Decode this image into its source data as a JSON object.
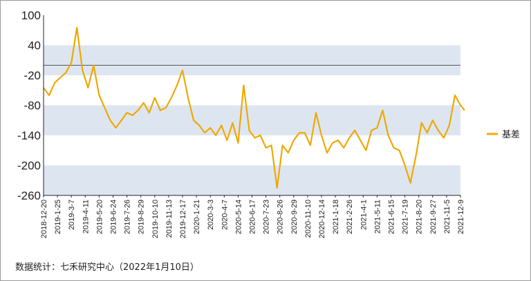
{
  "chart_data": {
    "type": "line",
    "title": "",
    "xlabel": "",
    "ylabel": "",
    "ylim": [
      -260,
      100
    ],
    "yticks": [
      100,
      40,
      -20,
      -80,
      -140,
      -200,
      -260
    ],
    "reference_line": 0,
    "shaded_bands": [
      [
        -20,
        40
      ],
      [
        -140,
        -80
      ],
      [
        -260,
        -200
      ]
    ],
    "x_tick_labels": [
      "2018-12-20",
      "2019-1-25",
      "2019-3-7",
      "2019-4-11",
      "2019-5-20",
      "2019-6-24",
      "2019-7-26",
      "2019-8-29",
      "2019-10-10",
      "2019-11-13",
      "2019-12-17",
      "2020-1-21",
      "2020-3-3",
      "2020-4-7",
      "2020-5-14",
      "2020-6-17",
      "2020-7-23",
      "2020-8-26",
      "2020-9-29",
      "2020-11-10",
      "2020-12-14",
      "2021-1-18",
      "2021-2-26",
      "2021-4-1",
      "2021-5-11",
      "2021-6-15",
      "2021-7-19",
      "2021-8-20",
      "2021-9-27",
      "2021-11-5",
      "2021-12-9"
    ],
    "series": [
      {
        "name": "基差",
        "color": "#F0A800",
        "x": [
          0,
          0.4,
          0.8,
          1.2,
          1.6,
          2.0,
          2.4,
          2.8,
          3.2,
          3.6,
          4.0,
          4.4,
          4.8,
          5.2,
          5.6,
          6.0,
          6.4,
          6.8,
          7.2,
          7.6,
          8.0,
          8.4,
          8.8,
          9.2,
          9.6,
          10.0,
          10.4,
          10.8,
          11.2,
          11.6,
          12.0,
          12.4,
          12.8,
          13.2,
          13.6,
          14.0,
          14.4,
          14.8,
          15.2,
          15.6,
          16.0,
          16.4,
          16.8,
          17.2,
          17.6,
          18.0,
          18.4,
          18.8,
          19.2,
          19.6,
          20.0,
          20.4,
          20.8,
          21.2,
          21.6,
          22.0,
          22.4,
          22.8,
          23.2,
          23.6,
          24.0,
          24.4,
          24.8,
          25.2,
          25.6,
          26.0,
          26.4,
          26.8,
          27.2,
          27.6,
          28.0,
          28.4,
          28.8,
          29.2,
          29.6,
          30.0,
          30.3
        ],
        "values": [
          -45,
          -60,
          -35,
          -25,
          -15,
          5,
          75,
          -10,
          -45,
          0,
          -60,
          -85,
          -110,
          -125,
          -110,
          -95,
          -100,
          -90,
          -75,
          -95,
          -65,
          -90,
          -85,
          -65,
          -40,
          -10,
          -65,
          -110,
          -120,
          -135,
          -125,
          -140,
          -120,
          -150,
          -115,
          -155,
          -40,
          -130,
          -145,
          -140,
          -165,
          -160,
          -245,
          -160,
          -175,
          -150,
          -135,
          -135,
          -160,
          -95,
          -140,
          -175,
          -155,
          -150,
          -165,
          -145,
          -130,
          -150,
          -170,
          -130,
          -125,
          -90,
          -140,
          -165,
          -170,
          -200,
          -235,
          -180,
          -115,
          -135,
          -110,
          -130,
          -145,
          -120,
          -60,
          -80,
          -90
        ]
      }
    ],
    "legend": {
      "position": "right",
      "entries": [
        "基差"
      ]
    },
    "source_note": "数据统计：七禾研究中心（2022年1月10日）"
  }
}
